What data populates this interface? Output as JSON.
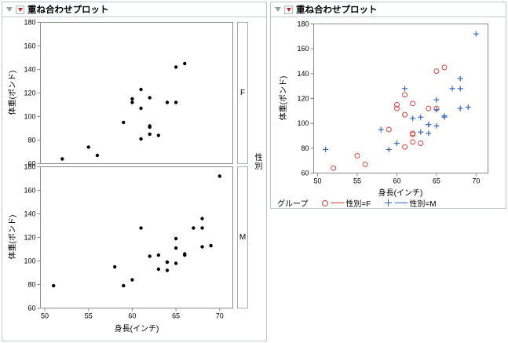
{
  "left_outline": {
    "title": "重ね合わせプロット"
  },
  "right_outline": {
    "title": "重ね合わせプロット"
  },
  "legend": {
    "group_label": "グループ"
  },
  "chart_data": [
    {
      "type": "scatter",
      "title": "重ね合わせプロット",
      "xlabel": "身長(インチ)",
      "ylabel": "体重(ポンド)",
      "xlim": [
        49.5,
        71.5
      ],
      "ylim": [
        60,
        180
      ],
      "xticks": [
        50,
        55,
        60,
        65,
        70
      ],
      "yticks": [
        60,
        80,
        100,
        120,
        140,
        160,
        180
      ],
      "group_by": "性別",
      "grid": false,
      "panels": [
        {
          "label": "F",
          "marker": "dot",
          "color": "#000000",
          "points": [
            [
              59,
              95
            ],
            [
              61,
              123
            ],
            [
              55,
              74
            ],
            [
              66,
              145
            ],
            [
              52,
              64
            ],
            [
              60,
              112
            ],
            [
              61,
              107
            ],
            [
              56,
              67
            ],
            [
              61,
              81
            ],
            [
              62,
              91
            ],
            [
              65,
              142
            ],
            [
              63,
              84
            ],
            [
              62,
              85
            ],
            [
              62,
              92
            ],
            [
              64,
              112
            ],
            [
              65,
              112
            ],
            [
              60,
              115
            ],
            [
              62,
              116
            ]
          ]
        },
        {
          "label": "M",
          "marker": "dot",
          "color": "#000000",
          "points": [
            [
              60,
              84
            ],
            [
              61,
              128
            ],
            [
              51,
              79
            ],
            [
              65,
              98
            ],
            [
              63,
              105
            ],
            [
              58,
              95
            ],
            [
              59,
              79
            ],
            [
              63,
              93
            ],
            [
              64,
              99
            ],
            [
              65,
              119
            ],
            [
              64,
              92
            ],
            [
              68,
              112
            ],
            [
              64,
              99
            ],
            [
              69,
              113
            ],
            [
              67,
              128
            ],
            [
              65,
              111
            ],
            [
              66,
              105
            ],
            [
              62,
              104
            ],
            [
              66,
              106
            ],
            [
              68,
              128
            ],
            [
              68,
              136
            ],
            [
              70,
              172
            ]
          ]
        }
      ]
    },
    {
      "type": "scatter",
      "title": "重ね合わせプロット",
      "xlabel": "身長(インチ)",
      "ylabel": "体重(ポンド)",
      "xlim": [
        49.5,
        71.5
      ],
      "ylim": [
        60,
        180
      ],
      "xticks": [
        50,
        55,
        60,
        65,
        70
      ],
      "yticks": [
        60,
        80,
        100,
        120,
        140,
        160,
        180
      ],
      "legend_label": "グループ",
      "legend_position": "bottom",
      "grid": false,
      "series": [
        {
          "name": "性別=F",
          "marker": "circle",
          "color": "#d9443f",
          "points": [
            [
              59,
              95
            ],
            [
              61,
              123
            ],
            [
              55,
              74
            ],
            [
              66,
              145
            ],
            [
              52,
              64
            ],
            [
              60,
              112
            ],
            [
              61,
              107
            ],
            [
              56,
              67
            ],
            [
              61,
              81
            ],
            [
              62,
              91
            ],
            [
              65,
              142
            ],
            [
              63,
              84
            ],
            [
              62,
              85
            ],
            [
              62,
              92
            ],
            [
              64,
              112
            ],
            [
              65,
              112
            ],
            [
              60,
              115
            ],
            [
              62,
              116
            ]
          ]
        },
        {
          "name": "性別=M",
          "marker": "plus",
          "color": "#3a66c9",
          "points": [
            [
              60,
              84
            ],
            [
              61,
              128
            ],
            [
              51,
              79
            ],
            [
              65,
              98
            ],
            [
              63,
              105
            ],
            [
              58,
              95
            ],
            [
              59,
              79
            ],
            [
              63,
              93
            ],
            [
              64,
              99
            ],
            [
              65,
              119
            ],
            [
              64,
              92
            ],
            [
              68,
              112
            ],
            [
              64,
              99
            ],
            [
              69,
              113
            ],
            [
              67,
              128
            ],
            [
              65,
              111
            ],
            [
              66,
              105
            ],
            [
              62,
              104
            ],
            [
              66,
              106
            ],
            [
              68,
              128
            ],
            [
              68,
              136
            ],
            [
              70,
              172
            ]
          ]
        }
      ]
    }
  ]
}
